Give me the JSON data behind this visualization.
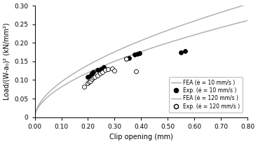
{
  "title": "",
  "xlabel": "Clip opening (mm)",
  "ylabel": "Load/(W-a₀)² (kN/mm²)",
  "xlim": [
    0.0,
    0.8
  ],
  "ylim": [
    0.0,
    0.3
  ],
  "xticks": [
    0.0,
    0.1,
    0.2,
    0.3,
    0.4,
    0.5,
    0.6,
    0.7,
    0.8
  ],
  "yticks": [
    0.0,
    0.05,
    0.1,
    0.15,
    0.2,
    0.25,
    0.3
  ],
  "fea_10_color": "#aaaaaa",
  "fea_120_color": "#aaaaaa",
  "fea_10_a": 0.345,
  "fea_10_b": 0.56,
  "fea_120_a": 0.295,
  "fea_120_b": 0.56,
  "exp_10_x": [
    0.2,
    0.21,
    0.215,
    0.22,
    0.235,
    0.25,
    0.26,
    0.345,
    0.355,
    0.375,
    0.385,
    0.395,
    0.55,
    0.565
  ],
  "exp_10_y": [
    0.108,
    0.112,
    0.118,
    0.122,
    0.128,
    0.13,
    0.135,
    0.157,
    0.16,
    0.168,
    0.17,
    0.172,
    0.175,
    0.178
  ],
  "exp_120_x": [
    0.185,
    0.2,
    0.205,
    0.21,
    0.215,
    0.22,
    0.225,
    0.235,
    0.245,
    0.255,
    0.265,
    0.275,
    0.29,
    0.3,
    0.345,
    0.38
  ],
  "exp_120_y": [
    0.083,
    0.092,
    0.095,
    0.098,
    0.102,
    0.106,
    0.108,
    0.112,
    0.118,
    0.122,
    0.127,
    0.13,
    0.132,
    0.125,
    0.158,
    0.124
  ],
  "legend_labels": [
    "FEA (ė = 10 mm/s )",
    "Exp. (ė = 10 mm/s )",
    "FEA (ė = 120 mm/s )",
    "Exp. (ė = 120 mm/s )"
  ]
}
